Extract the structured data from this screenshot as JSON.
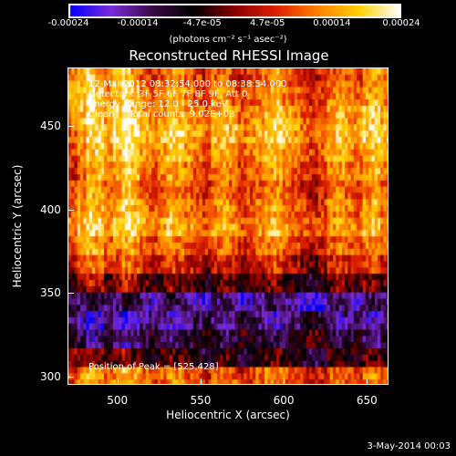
{
  "colorbar": {
    "ticks": [
      "-0.00024",
      "-0.00014",
      "-4.7e-05",
      "4.7e-05",
      "0.00014",
      "0.00024"
    ],
    "unit": "(photons cm⁻² s⁻¹ asec⁻²)",
    "stops": [
      "#0000ff",
      "#7b2bdc",
      "#3a0a44",
      "#000000",
      "#8a0000",
      "#e02000",
      "#ff8000",
      "#ffd000",
      "#ffffff"
    ]
  },
  "title": "Reconstructed RHESSI Image",
  "annotations": {
    "time_range": "12-Mar-2012 08:32:54.000 to 08:38:54.000",
    "detectors": "Detectors: 3F 5F 6F 7F 8F 9F, Att 0",
    "energy_range": "Energy Range: 12.0 - 25.0 keV",
    "clean": "Clean     Total counts: 9.02E+03",
    "peak": "Position of Peak = [525,428]"
  },
  "footer": "3-May-2014 00:03",
  "chart_data": {
    "type": "heatmap",
    "title": "Reconstructed RHESSI Image",
    "xlabel": "Heliocentric X (arcsec)",
    "ylabel": "Heliocentric Y (arcsec)",
    "xlim": [
      470,
      663
    ],
    "ylim": [
      295,
      485
    ],
    "x_ticks": [
      "500",
      "550",
      "600",
      "650"
    ],
    "y_ticks": [
      "300",
      "350",
      "400",
      "450"
    ],
    "colorbar_range": [
      -0.00024,
      0.00024
    ],
    "peak_position": [
      525,
      428
    ],
    "intensity_grid": [
      [
        0.55,
        0.7,
        0.8,
        0.6,
        0.5,
        0.7,
        0.8,
        0.6,
        0.4,
        0.3,
        0.4,
        0.6,
        0.5,
        0.4,
        0.3,
        0.2,
        0.4,
        0.5,
        0.3,
        0.2,
        0.3,
        0.4,
        0.5,
        0.6,
        0.4,
        0.3,
        0.2,
        0.1,
        0.2,
        0.4,
        0.5,
        0.4,
        0.3,
        0.5,
        0.6,
        0.4
      ],
      [
        0.6,
        0.8,
        0.85,
        0.7,
        0.5,
        0.75,
        0.9,
        0.7,
        0.5,
        0.4,
        0.5,
        0.7,
        0.6,
        0.5,
        0.35,
        0.3,
        0.5,
        0.6,
        0.4,
        0.3,
        0.4,
        0.5,
        0.6,
        0.7,
        0.5,
        0.4,
        0.3,
        0.2,
        0.3,
        0.5,
        0.6,
        0.5,
        0.4,
        0.6,
        0.7,
        0.5
      ],
      [
        0.5,
        0.7,
        0.9,
        0.8,
        0.6,
        0.8,
        0.95,
        0.8,
        0.6,
        0.5,
        0.6,
        0.8,
        0.7,
        0.6,
        0.5,
        0.4,
        0.6,
        0.7,
        0.6,
        0.4,
        0.5,
        0.6,
        0.7,
        0.8,
        0.6,
        0.5,
        0.4,
        0.3,
        0.4,
        0.6,
        0.7,
        0.6,
        0.5,
        0.7,
        0.8,
        0.6
      ],
      [
        0.4,
        0.6,
        0.8,
        0.9,
        0.7,
        0.85,
        1.0,
        0.9,
        0.7,
        0.6,
        0.7,
        0.85,
        0.8,
        0.7,
        0.6,
        0.5,
        0.7,
        0.8,
        0.7,
        0.5,
        0.6,
        0.7,
        0.8,
        0.85,
        0.7,
        0.6,
        0.5,
        0.4,
        0.5,
        0.7,
        0.8,
        0.7,
        0.6,
        0.8,
        0.85,
        0.7
      ],
      [
        0.3,
        0.5,
        0.7,
        0.8,
        0.6,
        0.7,
        0.9,
        0.8,
        0.6,
        0.5,
        0.6,
        0.75,
        0.7,
        0.6,
        0.5,
        0.4,
        0.6,
        0.7,
        0.6,
        0.4,
        0.5,
        0.6,
        0.7,
        0.75,
        0.6,
        0.5,
        0.4,
        0.3,
        0.4,
        0.6,
        0.7,
        0.6,
        0.5,
        0.7,
        0.75,
        0.6
      ],
      [
        0.2,
        0.4,
        0.6,
        0.7,
        0.5,
        0.6,
        0.8,
        0.7,
        0.5,
        0.4,
        0.5,
        0.65,
        0.6,
        0.5,
        0.4,
        0.3,
        0.5,
        0.6,
        0.5,
        0.3,
        0.4,
        0.5,
        0.6,
        0.65,
        0.5,
        0.4,
        0.3,
        0.2,
        0.3,
        0.5,
        0.6,
        0.5,
        0.4,
        0.6,
        0.65,
        0.5
      ],
      [
        0.3,
        0.5,
        0.7,
        0.6,
        0.4,
        0.5,
        0.7,
        0.6,
        0.4,
        0.3,
        0.4,
        0.55,
        0.5,
        0.4,
        0.3,
        0.2,
        0.4,
        0.5,
        0.4,
        0.2,
        0.3,
        0.4,
        0.5,
        0.55,
        0.4,
        0.3,
        0.2,
        0.1,
        0.2,
        0.4,
        0.5,
        0.4,
        0.3,
        0.5,
        0.55,
        0.4
      ],
      [
        0.4,
        0.6,
        0.8,
        0.7,
        0.5,
        0.6,
        0.8,
        0.7,
        0.5,
        0.4,
        0.5,
        0.65,
        0.6,
        0.5,
        0.4,
        0.3,
        0.5,
        0.6,
        0.5,
        0.3,
        0.4,
        0.5,
        0.6,
        0.65,
        0.5,
        0.4,
        0.3,
        0.2,
        0.3,
        0.5,
        0.6,
        0.5,
        0.4,
        0.6,
        0.65,
        0.5
      ],
      [
        0.5,
        0.7,
        0.85,
        0.8,
        0.6,
        0.7,
        0.85,
        0.8,
        0.6,
        0.5,
        0.6,
        0.75,
        0.7,
        0.6,
        0.5,
        0.4,
        0.6,
        0.7,
        0.6,
        0.4,
        0.5,
        0.6,
        0.7,
        0.75,
        0.6,
        0.5,
        0.4,
        0.3,
        0.4,
        0.6,
        0.7,
        0.6,
        0.5,
        0.7,
        0.75,
        0.6
      ],
      [
        0.4,
        0.6,
        0.7,
        0.6,
        0.4,
        0.5,
        0.7,
        0.6,
        0.4,
        0.3,
        0.4,
        0.55,
        0.5,
        0.4,
        0.3,
        0.2,
        0.4,
        0.5,
        0.4,
        0.2,
        0.3,
        0.4,
        0.5,
        0.55,
        0.4,
        0.3,
        0.2,
        0.1,
        0.2,
        0.4,
        0.5,
        0.4,
        0.3,
        0.5,
        0.55,
        0.4
      ],
      [
        0.1,
        0.3,
        0.5,
        0.4,
        0.2,
        0.3,
        0.5,
        0.4,
        0.2,
        0.1,
        0.2,
        0.35,
        0.3,
        0.2,
        0.1,
        0.0,
        0.2,
        0.3,
        0.2,
        0.0,
        0.1,
        0.2,
        0.3,
        0.35,
        0.2,
        0.1,
        0.0,
        -0.1,
        0.0,
        0.2,
        0.3,
        0.2,
        0.1,
        0.3,
        0.35,
        0.2
      ],
      [
        -0.2,
        0.0,
        0.2,
        0.1,
        -0.1,
        0.0,
        0.2,
        0.1,
        -0.1,
        -0.2,
        -0.1,
        0.05,
        0.0,
        -0.1,
        -0.2,
        -0.3,
        -0.1,
        0.0,
        -0.1,
        -0.3,
        -0.2,
        -0.1,
        0.0,
        0.05,
        -0.1,
        -0.2,
        -0.3,
        -0.4,
        -0.3,
        -0.1,
        0.0,
        -0.1,
        -0.2,
        0.0,
        0.05,
        -0.1
      ],
      [
        -0.4,
        -0.5,
        -0.3,
        -0.4,
        -0.6,
        -0.5,
        -0.3,
        -0.4,
        -0.6,
        -0.7,
        -0.6,
        -0.45,
        -0.5,
        -0.6,
        -0.7,
        -0.8,
        -0.6,
        -0.5,
        -0.6,
        -0.8,
        -0.7,
        -0.6,
        -0.5,
        -0.45,
        -0.6,
        -0.7,
        -0.8,
        -0.9,
        -0.8,
        -0.6,
        -0.5,
        -0.6,
        -0.7,
        -0.5,
        -0.45,
        -0.6
      ],
      [
        -0.5,
        -0.7,
        -0.9,
        -0.8,
        -0.6,
        -0.7,
        -0.9,
        -0.8,
        -0.6,
        -0.5,
        -0.6,
        -0.75,
        -0.7,
        -0.6,
        -0.5,
        -0.4,
        -0.6,
        -0.7,
        -0.6,
        -0.4,
        -0.5,
        -0.6,
        -0.7,
        -0.75,
        -0.6,
        -0.5,
        -0.4,
        -0.3,
        -0.4,
        -0.6,
        -0.7,
        -0.6,
        -0.5,
        -0.7,
        -0.75,
        -0.6
      ],
      [
        -0.3,
        -0.5,
        -0.7,
        -0.6,
        -0.4,
        -0.5,
        -0.7,
        -0.6,
        -0.4,
        -0.3,
        -0.4,
        -0.55,
        -0.5,
        -0.4,
        -0.3,
        -0.2,
        -0.4,
        -0.5,
        -0.4,
        -0.2,
        -0.3,
        -0.4,
        -0.5,
        -0.55,
        -0.4,
        -0.3,
        -0.2,
        -0.1,
        -0.2,
        -0.4,
        -0.5,
        -0.4,
        -0.3,
        -0.5,
        -0.55,
        -0.4
      ],
      [
        0.0,
        -0.1,
        0.1,
        0.0,
        -0.2,
        -0.1,
        0.1,
        0.0,
        -0.2,
        -0.3,
        -0.2,
        -0.05,
        -0.1,
        -0.2,
        -0.3,
        -0.4,
        -0.2,
        -0.1,
        -0.2,
        -0.4,
        -0.3,
        -0.2,
        -0.1,
        -0.05,
        -0.2,
        -0.3,
        -0.4,
        -0.5,
        -0.4,
        -0.2,
        -0.1,
        -0.2,
        -0.3,
        -0.1,
        -0.05,
        -0.2
      ],
      [
        0.3,
        0.5,
        0.7,
        0.6,
        0.4,
        0.5,
        0.7,
        0.6,
        0.4,
        0.3,
        0.4,
        0.55,
        0.5,
        0.4,
        0.3,
        0.2,
        0.4,
        0.5,
        0.4,
        0.2,
        0.3,
        0.4,
        0.5,
        0.55,
        0.4,
        0.3,
        0.2,
        0.1,
        0.2,
        0.4,
        0.5,
        0.4,
        0.3,
        0.5,
        0.55,
        0.4
      ]
    ]
  }
}
